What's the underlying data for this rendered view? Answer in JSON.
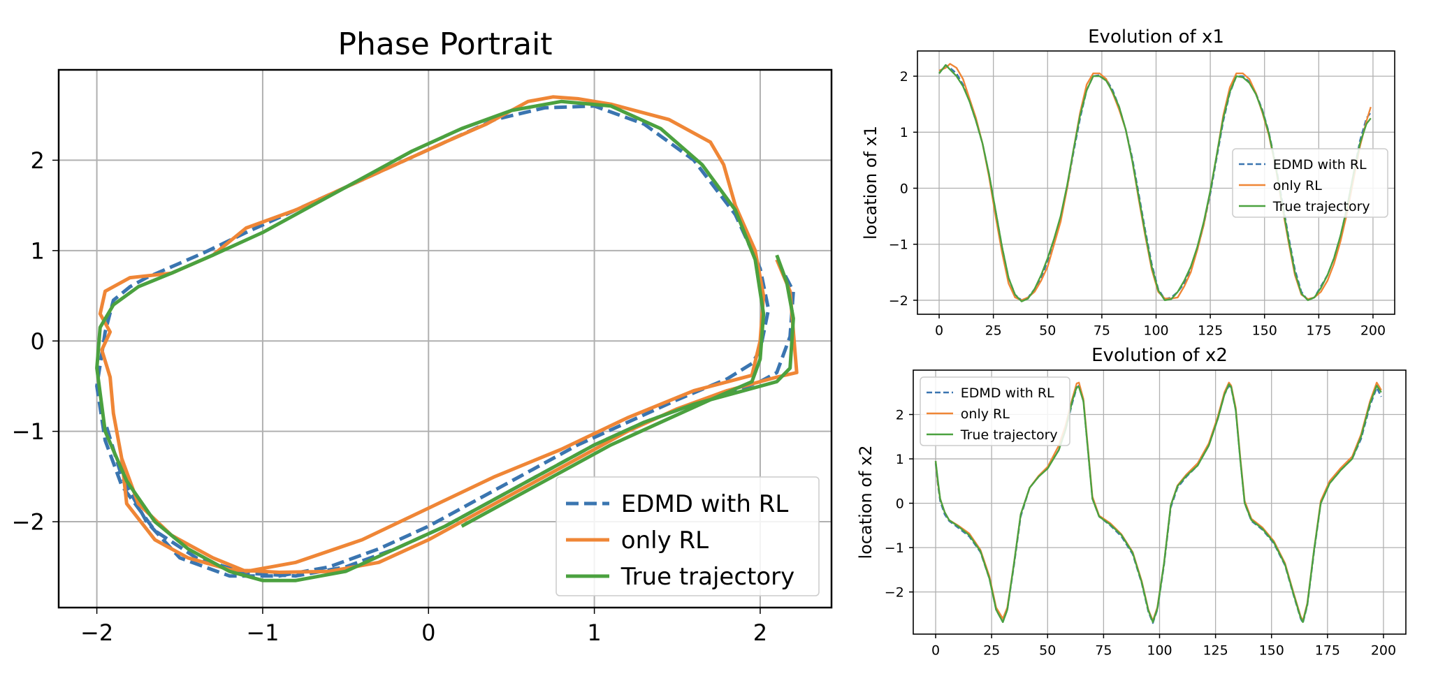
{
  "chart_data": [
    {
      "type": "line",
      "title": "Phase Portrait",
      "xlabel": "",
      "ylabel": "",
      "xlim": [
        -2.23,
        2.43
      ],
      "ylim": [
        -2.95,
        3.0
      ],
      "xticks": [
        -2,
        -1,
        0,
        1,
        2
      ],
      "yticks": [
        -2,
        -1,
        0,
        1,
        2
      ],
      "grid": true,
      "legend": "lower-right",
      "series": [
        {
          "name": "EDMD with RL",
          "color": "#3a75b0",
          "dash": "dashed",
          "x": [
            2.1,
            2.2,
            2.18,
            2.1,
            2.0,
            1.85,
            1.6,
            1.3,
            1.0,
            0.7,
            0.4,
            0.1,
            -0.2,
            -0.5,
            -0.8,
            -1.1,
            -1.4,
            -1.65,
            -1.85,
            -1.95,
            -2.0,
            -1.95,
            -1.9,
            -1.8,
            -1.7,
            -1.55,
            -1.35,
            -1.1,
            -0.8,
            -0.5,
            -0.2,
            0.1,
            0.4,
            0.7,
            1.0,
            1.3,
            1.6,
            1.85,
            2.0,
            2.05,
            2.0,
            1.95,
            1.8,
            1.5,
            1.2,
            0.9,
            0.6,
            0.3,
            0.0,
            -0.3,
            -0.6,
            -0.9,
            -1.2,
            -1.5,
            -1.7,
            -1.85,
            -1.95
          ],
          "y": [
            0.9,
            0.55,
            0.05,
            -0.35,
            -0.45,
            -0.55,
            -0.7,
            -0.9,
            -1.15,
            -1.45,
            -1.75,
            -2.05,
            -2.3,
            -2.5,
            -2.6,
            -2.57,
            -2.4,
            -2.1,
            -1.6,
            -1.1,
            -0.5,
            0.1,
            0.45,
            0.6,
            0.7,
            0.82,
            0.98,
            1.2,
            1.45,
            1.7,
            1.95,
            2.2,
            2.45,
            2.58,
            2.6,
            2.4,
            2.0,
            1.4,
            0.8,
            0.35,
            -0.1,
            -0.25,
            -0.42,
            -0.65,
            -0.9,
            -1.15,
            -1.45,
            -1.75,
            -2.05,
            -2.3,
            -2.5,
            -2.6,
            -2.6,
            -2.4,
            -2.0,
            -1.5,
            -0.9
          ]
        },
        {
          "name": "only RL",
          "color": "#ef8636",
          "dash": "solid",
          "x": [
            2.1,
            2.18,
            2.22,
            2.1,
            2.0,
            1.8,
            1.5,
            1.2,
            0.9,
            0.6,
            0.3,
            0.0,
            -0.3,
            -0.6,
            -0.9,
            -1.2,
            -1.45,
            -1.65,
            -1.82,
            -1.85,
            -1.9,
            -1.92,
            -1.97,
            -1.92,
            -1.98,
            -1.95,
            -1.8,
            -1.55,
            -1.3,
            -1.1,
            -0.8,
            -0.5,
            -0.2,
            0.1,
            0.35,
            0.6,
            0.75,
            0.9,
            1.1,
            1.45,
            1.7,
            1.78,
            1.85,
            1.97,
            2.02,
            2.0,
            1.95,
            1.6,
            1.2,
            0.8,
            0.4,
            0.0,
            -0.4,
            -0.8,
            -1.1,
            -1.3,
            -1.55,
            -1.75,
            -1.85
          ],
          "y": [
            0.9,
            0.55,
            -0.35,
            -0.4,
            -0.45,
            -0.55,
            -0.75,
            -1.0,
            -1.3,
            -1.6,
            -1.9,
            -2.2,
            -2.45,
            -2.55,
            -2.56,
            -2.53,
            -2.4,
            -2.2,
            -1.8,
            -1.3,
            -0.8,
            -0.4,
            -0.1,
            0.1,
            0.3,
            0.55,
            0.7,
            0.75,
            0.95,
            1.25,
            1.45,
            1.7,
            1.95,
            2.2,
            2.4,
            2.65,
            2.7,
            2.68,
            2.62,
            2.45,
            2.2,
            1.95,
            1.5,
            1.0,
            0.5,
            0.0,
            -0.38,
            -0.55,
            -0.85,
            -1.2,
            -1.5,
            -1.85,
            -2.2,
            -2.45,
            -2.55,
            -2.4,
            -2.15,
            -1.8,
            -1.3
          ]
        },
        {
          "name": "True trajectory",
          "color": "#4ba13f",
          "dash": "solid",
          "x": [
            2.1,
            2.16,
            2.2,
            2.18,
            2.1,
            1.9,
            1.6,
            1.3,
            1.0,
            0.7,
            0.4,
            0.1,
            -0.2,
            -0.5,
            -0.8,
            -1.0,
            -1.2,
            -1.45,
            -1.65,
            -1.82,
            -1.95,
            -2.0,
            -1.98,
            -1.9,
            -1.75,
            -1.55,
            -1.3,
            -1.0,
            -0.7,
            -0.4,
            -0.1,
            0.2,
            0.5,
            0.8,
            1.1,
            1.4,
            1.65,
            1.85,
            1.97,
            2.02,
            2.0,
            1.95,
            1.7,
            1.4,
            1.1,
            0.8,
            0.5,
            0.2
          ],
          "y": [
            0.95,
            0.65,
            0.25,
            -0.3,
            -0.45,
            -0.55,
            -0.7,
            -0.9,
            -1.15,
            -1.45,
            -1.75,
            -2.05,
            -2.3,
            -2.55,
            -2.65,
            -2.65,
            -2.55,
            -2.3,
            -2.0,
            -1.55,
            -1.0,
            -0.3,
            0.15,
            0.4,
            0.6,
            0.75,
            0.95,
            1.2,
            1.5,
            1.8,
            2.1,
            2.35,
            2.55,
            2.65,
            2.6,
            2.35,
            1.95,
            1.45,
            0.9,
            0.3,
            -0.2,
            -0.45,
            -0.65,
            -0.9,
            -1.15,
            -1.45,
            -1.75,
            -2.05
          ]
        }
      ]
    },
    {
      "type": "line",
      "title": "Evolution of x1",
      "xlabel": "",
      "ylabel": "location of x1",
      "xlim": [
        -10,
        210
      ],
      "ylim": [
        -2.25,
        2.45
      ],
      "xticks": [
        0,
        25,
        50,
        75,
        100,
        125,
        150,
        175,
        200
      ],
      "yticks": [
        -2,
        -1,
        0,
        1,
        2
      ],
      "grid": true,
      "legend": "center-right",
      "x": [
        0,
        3,
        5,
        8,
        11,
        14,
        17,
        20,
        23,
        26,
        29,
        32,
        35,
        38,
        41,
        44,
        47,
        50,
        53,
        56,
        59,
        62,
        65,
        68,
        71,
        74,
        77,
        80,
        83,
        86,
        89,
        92,
        95,
        98,
        101,
        104,
        107,
        110,
        113,
        116,
        119,
        122,
        125,
        128,
        131,
        134,
        137,
        140,
        143,
        146,
        149,
        152,
        155,
        158,
        161,
        164,
        167,
        170,
        173,
        176,
        179,
        182,
        185,
        188,
        191,
        194,
        197,
        199
      ],
      "series": [
        {
          "name": "EDMD with RL",
          "color": "#3a75b0",
          "dash": "dashed",
          "values": [
            2.05,
            2.2,
            2.15,
            2.05,
            1.85,
            1.55,
            1.2,
            0.8,
            0.25,
            -0.4,
            -1.05,
            -1.6,
            -1.9,
            -2.0,
            -1.95,
            -1.8,
            -1.6,
            -1.3,
            -0.95,
            -0.55,
            0.0,
            0.65,
            1.25,
            1.75,
            2.0,
            2.02,
            1.95,
            1.75,
            1.45,
            1.05,
            0.55,
            -0.1,
            -0.75,
            -1.35,
            -1.8,
            -1.98,
            -1.95,
            -1.85,
            -1.7,
            -1.45,
            -1.1,
            -0.65,
            -0.1,
            0.55,
            1.2,
            1.7,
            2.0,
            2.0,
            1.9,
            1.7,
            1.4,
            1.0,
            0.45,
            -0.2,
            -0.85,
            -1.45,
            -1.85,
            -2.0,
            -1.95,
            -1.75,
            -1.55,
            -1.25,
            -0.85,
            -0.35,
            0.25,
            0.85,
            1.25,
            1.35
          ]
        },
        {
          "name": "only RL",
          "color": "#ef8636",
          "dash": "solid",
          "values": [
            2.1,
            2.15,
            2.22,
            2.15,
            1.95,
            1.6,
            1.25,
            0.8,
            0.2,
            -0.5,
            -1.15,
            -1.7,
            -1.95,
            -2.0,
            -1.95,
            -1.85,
            -1.65,
            -1.4,
            -1.0,
            -0.6,
            0.0,
            0.7,
            1.35,
            1.85,
            2.05,
            2.05,
            1.95,
            1.7,
            1.4,
            1.05,
            0.5,
            -0.2,
            -0.85,
            -1.45,
            -1.85,
            -1.97,
            -1.97,
            -1.95,
            -1.75,
            -1.5,
            -1.1,
            -0.65,
            -0.05,
            0.6,
            1.3,
            1.8,
            2.05,
            2.05,
            1.95,
            1.7,
            1.35,
            0.95,
            0.4,
            -0.3,
            -0.95,
            -1.55,
            -1.9,
            -1.98,
            -1.95,
            -1.85,
            -1.65,
            -1.35,
            -0.95,
            -0.45,
            0.15,
            0.75,
            1.2,
            1.45
          ]
        },
        {
          "name": "True trajectory",
          "color": "#4ba13f",
          "dash": "solid",
          "values": [
            2.05,
            2.2,
            2.12,
            2.0,
            1.82,
            1.55,
            1.2,
            0.8,
            0.25,
            -0.4,
            -1.05,
            -1.6,
            -1.9,
            -2.02,
            -1.97,
            -1.8,
            -1.55,
            -1.25,
            -0.9,
            -0.5,
            0.05,
            0.7,
            1.3,
            1.75,
            2.0,
            2.0,
            1.92,
            1.72,
            1.45,
            1.05,
            0.5,
            -0.15,
            -0.8,
            -1.4,
            -1.82,
            -2.0,
            -1.98,
            -1.85,
            -1.65,
            -1.4,
            -1.05,
            -0.6,
            -0.05,
            0.6,
            1.25,
            1.72,
            2.0,
            1.98,
            1.88,
            1.68,
            1.38,
            0.98,
            0.42,
            -0.25,
            -0.9,
            -1.5,
            -1.88,
            -2.0,
            -1.95,
            -1.78,
            -1.55,
            -1.25,
            -0.85,
            -0.35,
            0.25,
            0.8,
            1.15,
            1.25
          ]
        }
      ]
    },
    {
      "type": "line",
      "title": "Evolution of x2",
      "xlabel": "",
      "ylabel": "location of x2",
      "xlim": [
        -10,
        210
      ],
      "ylim": [
        -2.95,
        3.0
      ],
      "xticks": [
        0,
        25,
        50,
        75,
        100,
        125,
        150,
        175,
        200
      ],
      "yticks": [
        -2,
        -1,
        0,
        1,
        2
      ],
      "grid": true,
      "legend": "top-left",
      "x": [
        0,
        1,
        2,
        4,
        6,
        10,
        15,
        20,
        24,
        27,
        30,
        32,
        35,
        38,
        42,
        46,
        50,
        55,
        58,
        61,
        63,
        64,
        66,
        68,
        70,
        73,
        78,
        83,
        88,
        92,
        95,
        97,
        99,
        102,
        105,
        108,
        112,
        117,
        122,
        126,
        129,
        131,
        132,
        134,
        136,
        138,
        141,
        146,
        151,
        156,
        160,
        163,
        164,
        166,
        169,
        172,
        176,
        181,
        186,
        190,
        194,
        197,
        199
      ],
      "series": [
        {
          "name": "EDMD with RL",
          "color": "#3a75b0",
          "dash": "dashed",
          "values": [
            0.9,
            0.4,
            0.05,
            -0.25,
            -0.4,
            -0.55,
            -0.75,
            -1.1,
            -1.7,
            -2.4,
            -2.68,
            -2.4,
            -1.4,
            -0.3,
            0.35,
            0.6,
            0.8,
            1.2,
            1.65,
            2.25,
            2.6,
            2.65,
            2.3,
            1.2,
            0.1,
            -0.3,
            -0.5,
            -0.75,
            -1.15,
            -1.8,
            -2.45,
            -2.7,
            -2.4,
            -1.4,
            -0.1,
            0.35,
            0.6,
            0.85,
            1.3,
            1.9,
            2.45,
            2.65,
            2.6,
            2.1,
            1.0,
            0.0,
            -0.4,
            -0.6,
            -0.9,
            -1.4,
            -2.1,
            -2.6,
            -2.7,
            -2.3,
            -1.1,
            0.0,
            0.45,
            0.75,
            1.0,
            1.45,
            2.2,
            2.6,
            2.4
          ]
        },
        {
          "name": "only RL",
          "color": "#ef8636",
          "dash": "solid",
          "values": [
            0.95,
            0.45,
            0.1,
            -0.2,
            -0.38,
            -0.5,
            -0.68,
            -1.05,
            -1.65,
            -2.35,
            -2.6,
            -2.35,
            -1.35,
            -0.25,
            0.35,
            0.62,
            0.82,
            1.3,
            1.75,
            2.35,
            2.7,
            2.72,
            2.35,
            1.25,
            0.15,
            -0.28,
            -0.45,
            -0.7,
            -1.1,
            -1.75,
            -2.4,
            -2.65,
            -2.35,
            -1.35,
            -0.05,
            0.4,
            0.65,
            0.9,
            1.35,
            1.95,
            2.5,
            2.72,
            2.65,
            2.15,
            1.05,
            0.05,
            -0.35,
            -0.55,
            -0.85,
            -1.35,
            -2.05,
            -2.55,
            -2.65,
            -2.25,
            -1.05,
            0.05,
            0.5,
            0.8,
            1.05,
            1.55,
            2.3,
            2.72,
            2.55
          ]
        },
        {
          "name": "True trajectory",
          "color": "#4ba13f",
          "dash": "solid",
          "values": [
            0.95,
            0.5,
            0.1,
            -0.2,
            -0.38,
            -0.52,
            -0.72,
            -1.08,
            -1.7,
            -2.4,
            -2.68,
            -2.4,
            -1.35,
            -0.25,
            0.35,
            0.6,
            0.78,
            1.2,
            1.65,
            2.3,
            2.62,
            2.62,
            2.3,
            1.2,
            0.1,
            -0.3,
            -0.48,
            -0.72,
            -1.12,
            -1.78,
            -2.42,
            -2.68,
            -2.38,
            -1.35,
            -0.05,
            0.38,
            0.62,
            0.85,
            1.3,
            1.9,
            2.45,
            2.68,
            2.62,
            2.1,
            1.0,
            0.0,
            -0.38,
            -0.58,
            -0.88,
            -1.38,
            -2.08,
            -2.58,
            -2.68,
            -2.28,
            -1.05,
            0.0,
            0.45,
            0.75,
            1.0,
            1.5,
            2.25,
            2.65,
            2.5
          ]
        }
      ]
    }
  ]
}
